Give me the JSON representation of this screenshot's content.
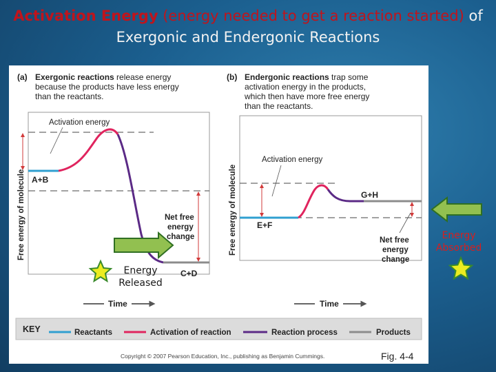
{
  "title": {
    "part1": "Activation Energy",
    "part2": " (energy needed to get a reaction started)",
    "part3": " of Exergonic and Endergonic Reactions"
  },
  "panel_a": {
    "tag": "(a)",
    "heading_bold": "Exergonic reactions",
    "heading_line1_rest": " release energy",
    "heading_line2": "because the products have less energy",
    "heading_line3": "than the reactants.",
    "activation_label": "Activation energy",
    "reactant_label": "A+B",
    "product_label": "C+D",
    "net_label": [
      "Net free",
      "energy",
      "change"
    ],
    "y_axis": "Free energy of molecule",
    "x_axis": "Time"
  },
  "panel_b": {
    "tag": "(b)",
    "heading_bold": "Endergonic reactions",
    "heading_line1_rest": " trap some",
    "heading_line2": "activation energy in the products,",
    "heading_line3": "which then have more free energy",
    "heading_line4": "than the reactants.",
    "activation_label": "Activation energy",
    "reactant_label": "E+F",
    "product_label": "G+H",
    "net_label": [
      "Net free",
      "energy",
      "change"
    ],
    "y_axis": "Free energy of molecule",
    "x_axis": "Time"
  },
  "key": {
    "title": "KEY",
    "items": [
      "Reactants",
      "Activation of reaction",
      "Reaction process",
      "Products"
    ],
    "colors": [
      "#2f9fd0",
      "#e0245e",
      "#5b2a86",
      "#8c8c8c"
    ]
  },
  "copyright": "Copyright © 2007 Pearson Education, Inc., publishing as Benjamin Cummings.",
  "fig_label": "Fig. 4-4",
  "callouts": {
    "released_line1": "Energy",
    "released_line2": "Released",
    "absorbed_line1": "Energy",
    "absorbed_line2": "Absorbed"
  }
}
